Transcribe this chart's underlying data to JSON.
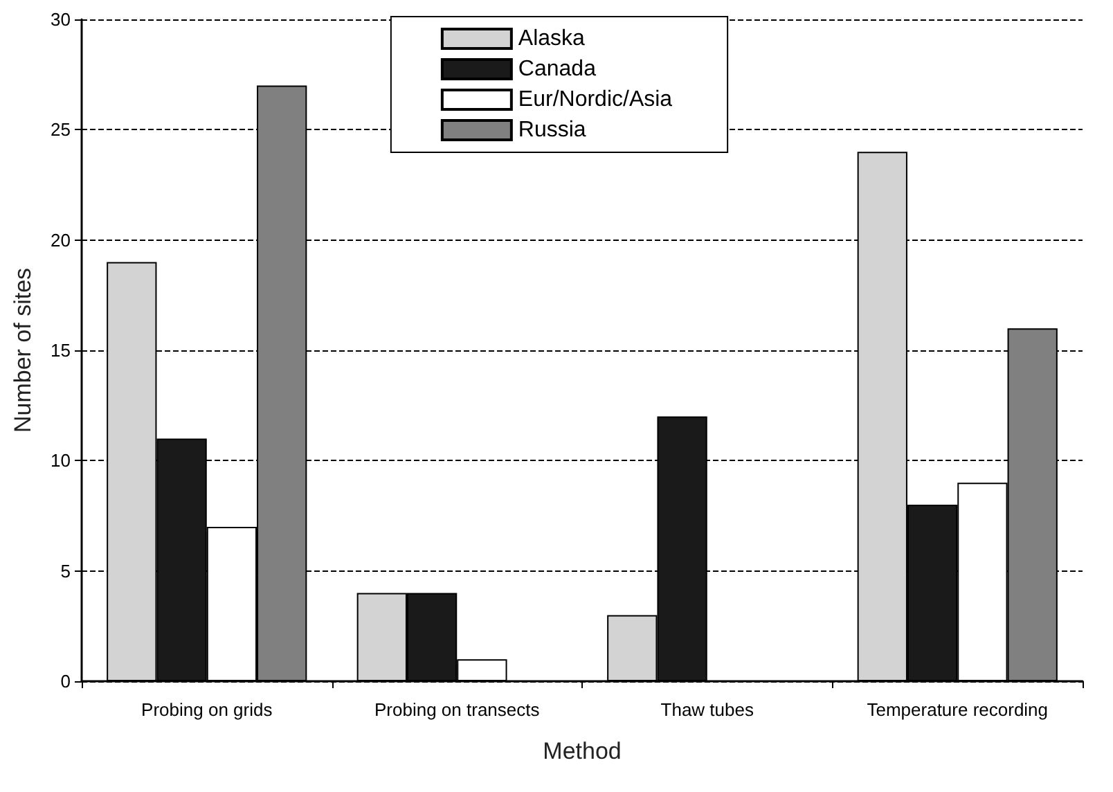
{
  "chart_data": {
    "type": "bar",
    "xlabel": "Method",
    "ylabel": "Number of sites",
    "categories": [
      "Probing on grids",
      "Probing on transects",
      "Thaw tubes",
      "Temperature recording"
    ],
    "series": [
      {
        "name": "Alaska",
        "color": "#d3d3d3",
        "values": [
          19,
          4,
          3,
          24
        ]
      },
      {
        "name": "Canada",
        "color": "#1a1a1a",
        "values": [
          11,
          4,
          12,
          8
        ]
      },
      {
        "name": "Eur/Nordic/Asia",
        "color": "#ffffff",
        "values": [
          7,
          1,
          0,
          9
        ]
      },
      {
        "name": "Russia",
        "color": "#808080",
        "values": [
          27,
          0,
          0,
          16
        ]
      }
    ],
    "ylim": [
      0,
      30
    ],
    "yticks": [
      0,
      5,
      10,
      15,
      20,
      25,
      30
    ],
    "grid": "y",
    "legend": "top"
  }
}
